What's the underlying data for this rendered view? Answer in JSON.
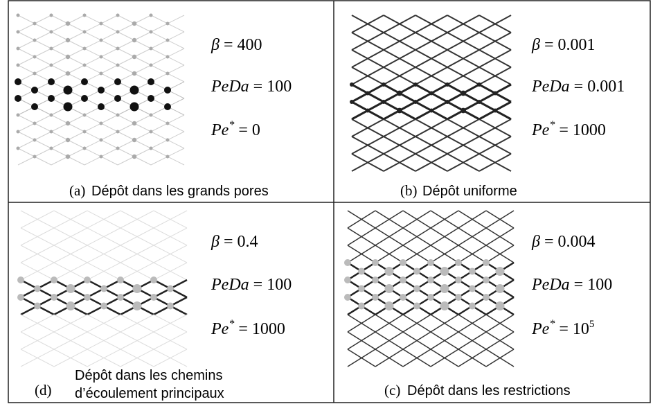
{
  "panels": [
    {
      "letter": "(a)",
      "caption": [
        "Dépôt dans les grands pores"
      ],
      "params": [
        {
          "name": "β",
          "value": "400"
        },
        {
          "name": "PeDa",
          "value": "100"
        },
        {
          "name": "Pe",
          "sup": "*",
          "value": "0"
        }
      ]
    },
    {
      "letter": "(b)",
      "caption": [
        "Dépôt uniforme"
      ],
      "params": [
        {
          "name": "β",
          "value": "0.001"
        },
        {
          "name": "PeDa",
          "value": "0.001"
        },
        {
          "name": "Pe",
          "sup": "*",
          "value": "1000"
        }
      ]
    },
    {
      "letter": "(d)",
      "caption": [
        "Dépôt dans les chemins",
        "d’écoulement principaux"
      ],
      "params": [
        {
          "name": "β",
          "value": "0.4"
        },
        {
          "name": "PeDa",
          "value": "100"
        },
        {
          "name": "Pe",
          "sup": "*",
          "value": "1000"
        }
      ]
    },
    {
      "letter": "(c)",
      "caption": [
        "Dépôt dans les restrictions"
      ],
      "params": [
        {
          "name": "β",
          "value": "0.004"
        },
        {
          "name": "PeDa",
          "value": "100"
        },
        {
          "name": "Pe",
          "sup": "*",
          "value": "10",
          "value_sup": "5"
        }
      ]
    }
  ]
}
